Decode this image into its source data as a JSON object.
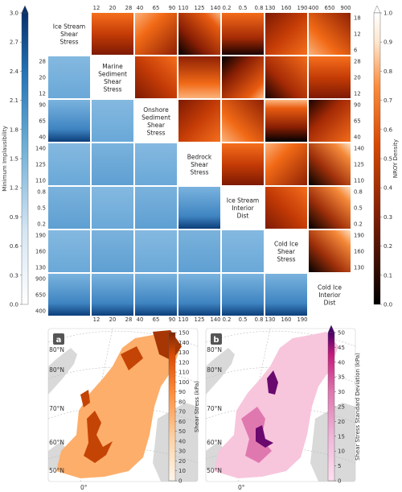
{
  "chart_data": [
    {
      "type": "heatmap",
      "subtype": "pairwise-plausibility-matrix",
      "parameters": [
        {
          "label": "Ice Stream Shear Stress",
          "lower_ticks": [],
          "upper_ticks": [
            "12",
            "20",
            "28"
          ],
          "right_ticks": [
            "18",
            "12",
            "6"
          ],
          "left_ticks": []
        },
        {
          "label": "Marine Sediment Shear Stress",
          "lower_ticks": [
            "12",
            "20",
            "28"
          ],
          "upper_ticks": [
            "40",
            "65",
            "90"
          ],
          "right_ticks": [
            "28",
            "20",
            "12"
          ],
          "left_ticks": [
            "28",
            "20",
            "12"
          ]
        },
        {
          "label": "Onshore Sediment Shear Stress",
          "lower_ticks": [
            "40",
            "65",
            "90"
          ],
          "upper_ticks": [
            "110",
            "125",
            "140"
          ],
          "right_ticks": [
            "90",
            "65",
            "40"
          ],
          "left_ticks": [
            "90",
            "65",
            "40"
          ]
        },
        {
          "label": "Bedrock Shear Stress",
          "lower_ticks": [
            "110",
            "125",
            "140"
          ],
          "upper_ticks": [
            "0.2",
            "0.5",
            "0.8"
          ],
          "right_ticks": [
            "140",
            "125",
            "110"
          ],
          "left_ticks": [
            "140",
            "125",
            "110"
          ]
        },
        {
          "label": "Ice Stream Interior Dist",
          "lower_ticks": [
            "0.2",
            "0.5",
            "0.8"
          ],
          "upper_ticks": [
            "130",
            "160",
            "190"
          ],
          "right_ticks": [
            "0.8",
            "0.5",
            "0.2"
          ],
          "left_ticks": [
            "0.8",
            "0.5",
            "0.2"
          ]
        },
        {
          "label": "Cold Ice Shear Stress",
          "lower_ticks": [
            "130",
            "160",
            "190"
          ],
          "upper_ticks": [
            "400",
            "650",
            "900"
          ],
          "right_ticks": [
            "190",
            "160",
            "130"
          ],
          "left_ticks": [
            "190",
            "160",
            "130"
          ]
        },
        {
          "label": "Cold Ice Interior Dist",
          "lower_ticks": [],
          "upper_ticks": [],
          "right_ticks": [],
          "left_ticks": [
            "900",
            "650",
            "400"
          ]
        }
      ],
      "left_colorbar": {
        "label": "Minimum Implausibility",
        "ticks": [
          "3.0",
          "2.7",
          "2.4",
          "2.1",
          "1.8",
          "1.5",
          "1.2",
          "0.9",
          "0.6",
          "0.3",
          "0.0"
        ],
        "range": [
          0,
          3.0
        ],
        "extend": "max",
        "colormap": [
          "#ffffff",
          "#d6e6f4",
          "#6baed6",
          "#2171b5",
          "#08306b"
        ]
      },
      "right_colorbar": {
        "label": "NROY Density",
        "ticks": [
          "1.0",
          "0.9",
          "0.8",
          "0.7",
          "0.6",
          "0.5",
          "0.4",
          "0.3",
          "0.2",
          "0.1",
          "0.0"
        ],
        "range": [
          0,
          1.0
        ],
        "extend": "max",
        "colormap": [
          "#000000",
          "#7f1d05",
          "#d94801",
          "#fd8d3c",
          "#fee6ce",
          "#ffffff"
        ]
      }
    },
    {
      "type": "map",
      "panel": "a",
      "lat_labels": [
        "80°N",
        "80°N",
        "70°N",
        "60°N",
        "50°N"
      ],
      "lon_label": "0°",
      "colorbar": {
        "label": "Shear Stress (kPa)",
        "ticks": [
          "150",
          "140",
          "130",
          "120",
          "110",
          "100",
          "90",
          "80",
          "70",
          "60",
          "50",
          "40",
          "30",
          "20",
          "10",
          "0"
        ],
        "range": [
          0,
          150
        ],
        "colormap": [
          "#fff5eb",
          "#fdd0a2",
          "#fd8d3c",
          "#d94801",
          "#7f2704"
        ]
      }
    },
    {
      "type": "map",
      "panel": "b",
      "lat_labels": [
        "80°N",
        "80°N",
        "70°N",
        "60°N",
        "50°N"
      ],
      "lon_label": "0°",
      "colorbar": {
        "label": "Shear Stress Standard Deviation (kPa)",
        "ticks": [
          "50",
          "45",
          "40",
          "35",
          "30",
          "25",
          "20",
          "15",
          "10",
          "5",
          "0"
        ],
        "range": [
          0,
          50
        ],
        "extend": "max",
        "colormap": [
          "#fde0ef",
          "#f1b6da",
          "#de77ae",
          "#c51b7d",
          "#49006a"
        ]
      }
    }
  ]
}
